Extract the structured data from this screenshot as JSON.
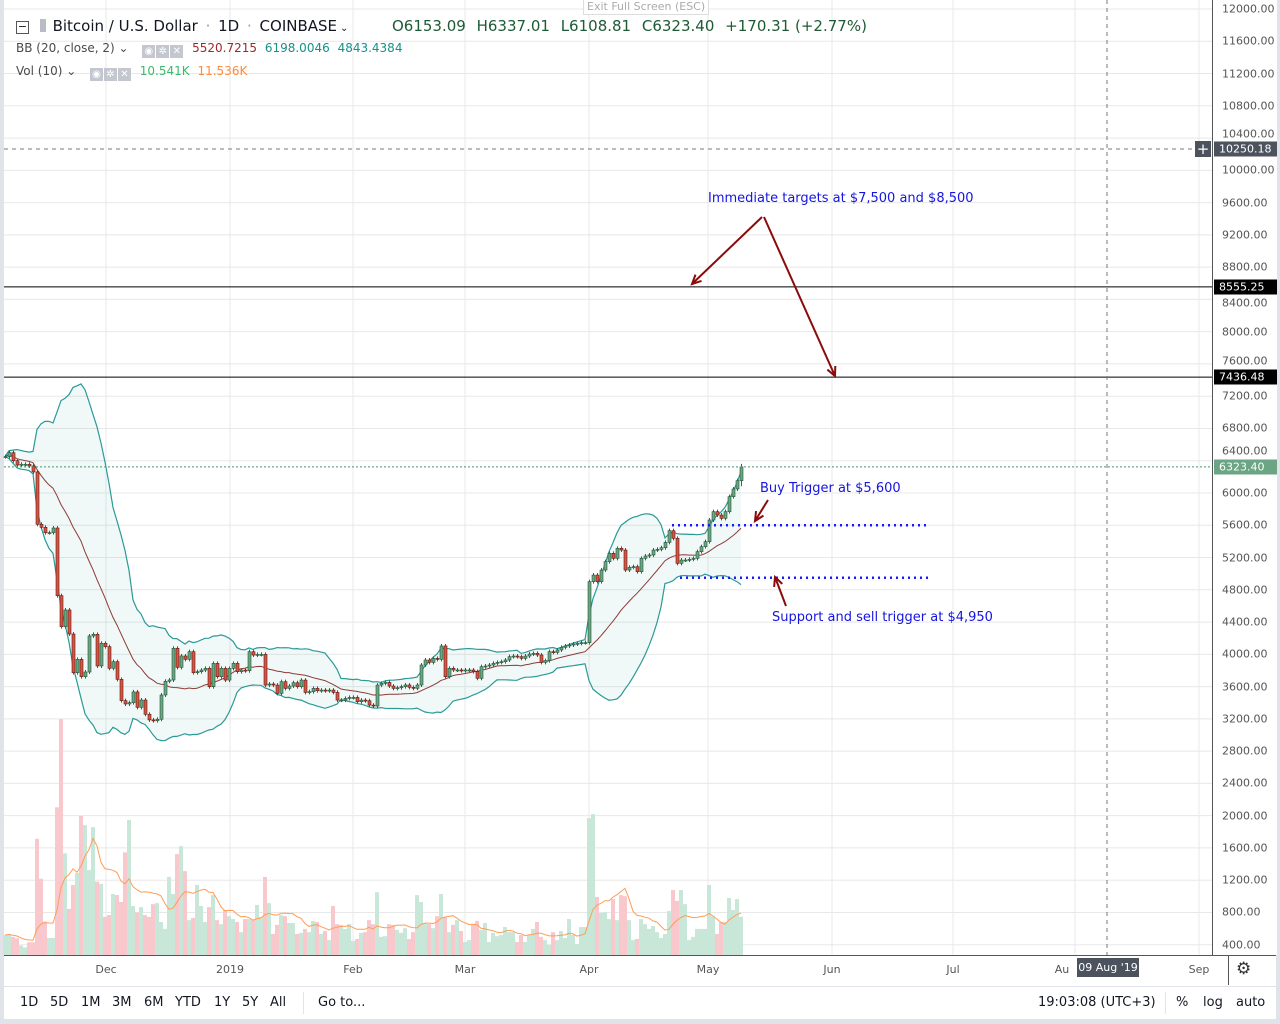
{
  "header": {
    "symbol": "Bitcoin / U.S. Dollar",
    "interval": "1D",
    "exchange": "COINBASE",
    "open": "O6153.09",
    "high": "H6337.01",
    "low": "L6108.81",
    "close": "C6323.40",
    "change": "+170.31 (+2.77%)",
    "tooltip": "Exit Full Screen (ESC)"
  },
  "indicators": [
    {
      "label": "BB (20, close, 2)",
      "values": [
        "5520.7215",
        "6198.0046",
        "4843.4384"
      ],
      "colors": [
        "#9b2a2a",
        "#16908b",
        "#16908b"
      ]
    },
    {
      "label": "Vol (10)",
      "values": [
        "10.541K",
        "11.536K"
      ],
      "colors": [
        "#3cba6b",
        "#ff8a3d"
      ]
    }
  ],
  "price_axis": {
    "ticks": [
      "12000.00",
      "11600.00",
      "11200.00",
      "10800.00",
      "10400.00",
      "10000.00",
      "9600.00",
      "9200.00",
      "8800.00",
      "8400.00",
      "8000.00",
      "7600.00",
      "7200.00",
      "6800.00",
      "6400.00",
      "6000.00",
      "5600.00",
      "5200.00",
      "4800.00",
      "4400.00",
      "4000.00",
      "3600.00",
      "3200.00",
      "2800.00",
      "2400.00",
      "2000.00",
      "1600.00",
      "1200.00",
      "800.00",
      "400.00"
    ],
    "crosshair_label": "10250.18",
    "line_upper_label": "8555.25",
    "line_lower_label": "7436.48",
    "last_price_label": "6323.40"
  },
  "time_axis": {
    "ticks": [
      "Dec",
      "2019",
      "Feb",
      "Mar",
      "Apr",
      "May",
      "Jun",
      "Jul",
      "Au",
      "Sep"
    ],
    "crosshair_label": "09 Aug '19"
  },
  "annotations": {
    "targets": "Immediate targets at $7,500 and $8,500",
    "buy": "Buy Trigger at $5,600",
    "support": "Support and sell trigger at $4,950"
  },
  "toolbar": {
    "ranges": [
      "1D",
      "5D",
      "1M",
      "3M",
      "6M",
      "YTD",
      "1Y",
      "5Y",
      "All"
    ],
    "goto": "Go to...",
    "clock": "19:03:08 (UTC+3)",
    "percent": "%",
    "log": "log",
    "auto": "auto"
  },
  "colors": {
    "up": "#6ba583",
    "down": "#d75442",
    "up_border": "#225437",
    "down_border": "#5b1a13",
    "vol_up": "#c9e7d8",
    "vol_down": "#f8c8cd",
    "bb_band": "#2a9a96",
    "bb_basis": "#8e3b36",
    "vol_ma": "#ff9d56",
    "annotation_text": "#1515e0",
    "annotation_arrow": "#8b0a0a",
    "level_line": "#000000"
  },
  "chart_data": {
    "type": "candlestick",
    "price_scale": "linear",
    "ylim": [
      400,
      12000
    ],
    "bollinger": {
      "period": 20,
      "source": "close",
      "stddev": 2
    },
    "volume_ma_period": 10,
    "levels": [
      8555.25,
      7436.48
    ],
    "buy_trigger": 5600,
    "support_trigger": 4950,
    "last": {
      "open": 6153.09,
      "high": 6337.01,
      "low": 6108.81,
      "close": 6323.4
    },
    "columns": [
      "date",
      "close",
      "volume_k"
    ],
    "rows": [
      [
        "2018-11-07",
        6451,
        5.5
      ],
      [
        "2018-11-08",
        6500,
        5.8
      ],
      [
        "2018-11-09",
        6401,
        5
      ],
      [
        "2018-11-10",
        6347,
        4.6
      ],
      [
        "2018-11-11",
        6356,
        2.6
      ],
      [
        "2018-11-12",
        6356,
        2.1
      ],
      [
        "2018-11-13",
        6335,
        3.5
      ],
      [
        "2018-11-14",
        6261,
        3.5
      ],
      [
        "2018-11-15",
        5612,
        32
      ],
      [
        "2018-11-16",
        5575,
        21
      ],
      [
        "2018-11-17",
        5509,
        9.2
      ],
      [
        "2018-11-18",
        5509,
        4.7
      ],
      [
        "2018-11-19",
        5566,
        4.7
      ],
      [
        "2018-11-20",
        4728,
        40.7
      ],
      [
        "2018-11-21",
        4343,
        65
      ],
      [
        "2018-11-22",
        4550,
        28
      ],
      [
        "2018-11-23",
        4252,
        12.7
      ],
      [
        "2018-11-24",
        3773,
        19.3
      ],
      [
        "2018-11-25",
        3938,
        22.6
      ],
      [
        "2018-11-26",
        3724,
        38.3
      ],
      [
        "2018-11-27",
        3781,
        35.8
      ],
      [
        "2018-11-28",
        4228,
        23.4
      ],
      [
        "2018-11-29",
        4248,
        35.2
      ],
      [
        "2018-11-30",
        3856,
        20.2
      ],
      [
        "2018-12-01",
        4137,
        19.6
      ],
      [
        "2018-12-02",
        4095,
        10.5
      ],
      [
        "2018-12-03",
        3827,
        11
      ],
      [
        "2018-12-04",
        3909,
        16.8
      ],
      [
        "2018-12-05",
        3690,
        16.5
      ],
      [
        "2018-12-06",
        3426,
        14.6
      ],
      [
        "2018-12-07",
        3385,
        28.3
      ],
      [
        "2018-12-08",
        3401,
        37.2
      ],
      [
        "2018-12-09",
        3534,
        13.5
      ],
      [
        "2018-12-10",
        3343,
        11.7
      ],
      [
        "2018-12-11",
        3434,
        13.2
      ],
      [
        "2018-12-12",
        3257,
        11
      ],
      [
        "2018-12-13",
        3187,
        10.5
      ],
      [
        "2018-12-14",
        3178,
        14
      ],
      [
        "2018-12-15",
        3195,
        14.3
      ],
      [
        "2018-12-16",
        3496,
        9.1
      ],
      [
        "2018-12-17",
        3666,
        7.2
      ],
      [
        "2018-12-18",
        3682,
        21.5
      ],
      [
        "2018-12-19",
        4075,
        16.8
      ],
      [
        "2018-12-20",
        3839,
        27.8
      ],
      [
        "2018-12-21",
        3980,
        30
      ],
      [
        "2018-12-22",
        3938,
        23.1
      ],
      [
        "2018-12-23",
        4033,
        9.6
      ],
      [
        "2018-12-24",
        3773,
        10.2
      ],
      [
        "2018-12-25",
        3785,
        19.3
      ],
      [
        "2018-12-26",
        3805,
        13.5
      ],
      [
        "2018-12-27",
        3826,
        9.1
      ],
      [
        "2018-12-28",
        3599,
        13.2
      ],
      [
        "2018-12-29",
        3888,
        16.5
      ],
      [
        "2018-12-30",
        3723,
        9.6
      ],
      [
        "2018-12-31",
        3826,
        8.5
      ],
      [
        "2019-01-01",
        3681,
        12.4
      ],
      [
        "2019-01-02",
        3826,
        10.7
      ],
      [
        "2019-01-03",
        3888,
        9.9
      ],
      [
        "2019-01-04",
        3785,
        9.1
      ],
      [
        "2019-01-05",
        3805,
        6.3
      ],
      [
        "2019-01-06",
        3797,
        9.9
      ],
      [
        "2019-01-07",
        4032,
        9.9
      ],
      [
        "2019-01-08",
        3991,
        9.6
      ],
      [
        "2019-01-09",
        3999,
        13.8
      ],
      [
        "2019-01-10",
        3999,
        10.5
      ],
      [
        "2019-01-11",
        3619,
        21.5
      ],
      [
        "2019-01-12",
        3632,
        14.3
      ],
      [
        "2019-01-13",
        3619,
        5.8
      ],
      [
        "2019-01-14",
        3516,
        8.3
      ],
      [
        "2019-01-15",
        3661,
        11
      ],
      [
        "2019-01-16",
        3578,
        10.7
      ],
      [
        "2019-01-17",
        3607,
        8.8
      ],
      [
        "2019-01-18",
        3648,
        8.8
      ],
      [
        "2019-01-19",
        3599,
        5.8
      ],
      [
        "2019-01-20",
        3681,
        6.1
      ],
      [
        "2019-01-21",
        3528,
        7.2
      ],
      [
        "2019-01-22",
        3537,
        6.3
      ],
      [
        "2019-01-23",
        3578,
        9.4
      ],
      [
        "2019-01-24",
        3549,
        9.1
      ],
      [
        "2019-01-25",
        3557,
        5.8
      ],
      [
        "2019-01-26",
        3549,
        6.6
      ],
      [
        "2019-01-27",
        3557,
        4.1
      ],
      [
        "2019-01-28",
        3528,
        13.5
      ],
      [
        "2019-01-29",
        3433,
        8.5
      ],
      [
        "2019-01-30",
        3433,
        8.3
      ],
      [
        "2019-01-31",
        3454,
        7.2
      ],
      [
        "2019-02-01",
        3466,
        8.5
      ],
      [
        "2019-02-02",
        3466,
        3.9
      ],
      [
        "2019-02-03",
        3413,
        4.4
      ],
      [
        "2019-02-04",
        3433,
        6.1
      ],
      [
        "2019-02-05",
        3425,
        6.3
      ],
      [
        "2019-02-06",
        3371,
        9.6
      ],
      [
        "2019-02-07",
        3359,
        8.5
      ],
      [
        "2019-02-08",
        3619,
        17.3
      ],
      [
        "2019-02-09",
        3640,
        5
      ],
      [
        "2019-02-10",
        3652,
        5.2
      ],
      [
        "2019-02-11",
        3607,
        8.5
      ],
      [
        "2019-02-12",
        3578,
        8.3
      ],
      [
        "2019-02-13",
        3586,
        6.9
      ],
      [
        "2019-02-14",
        3600,
        6.1
      ],
      [
        "2019-02-15",
        3620,
        7.4
      ],
      [
        "2019-02-16",
        3591,
        4.4
      ],
      [
        "2019-02-17",
        3579,
        6.3
      ],
      [
        "2019-02-18",
        3620,
        16.5
      ],
      [
        "2019-02-19",
        3868,
        14.6
      ],
      [
        "2019-02-20",
        3930,
        8.8
      ],
      [
        "2019-02-21",
        3901,
        8.5
      ],
      [
        "2019-02-22",
        3950,
        7.4
      ],
      [
        "2019-02-23",
        3938,
        10.7
      ],
      [
        "2019-02-24",
        4104,
        16.8
      ],
      [
        "2019-02-25",
        3723,
        10.5
      ],
      [
        "2019-02-26",
        3827,
        6.3
      ],
      [
        "2019-02-27",
        3806,
        8.3
      ],
      [
        "2019-02-28",
        3806,
        9.6
      ],
      [
        "2019-03-01",
        3798,
        6.6
      ],
      [
        "2019-03-02",
        3806,
        3.6
      ],
      [
        "2019-03-03",
        3806,
        4.1
      ],
      [
        "2019-03-04",
        3785,
        8.3
      ],
      [
        "2019-03-05",
        3703,
        9.4
      ],
      [
        "2019-03-06",
        3847,
        6.9
      ],
      [
        "2019-03-07",
        3855,
        8.8
      ],
      [
        "2019-03-08",
        3868,
        3.6
      ],
      [
        "2019-03-09",
        3889,
        6.1
      ],
      [
        "2019-03-10",
        3901,
        5.2
      ],
      [
        "2019-03-11",
        3909,
        5.5
      ],
      [
        "2019-03-12",
        3930,
        7.7
      ],
      [
        "2019-03-13",
        3971,
        6.3
      ],
      [
        "2019-03-14",
        3979,
        6.3
      ],
      [
        "2019-03-15",
        3971,
        3.6
      ],
      [
        "2019-03-16",
        3950,
        5.5
      ],
      [
        "2019-03-17",
        3979,
        3.6
      ],
      [
        "2019-03-18",
        4004,
        5.5
      ],
      [
        "2019-03-19",
        4012,
        7.2
      ],
      [
        "2019-03-20",
        3992,
        9.1
      ],
      [
        "2019-03-21",
        3901,
        5
      ],
      [
        "2019-03-22",
        3922,
        4.1
      ],
      [
        "2019-03-23",
        4033,
        2.8
      ],
      [
        "2019-03-24",
        4025,
        6.3
      ],
      [
        "2019-03-25",
        4054,
        4.1
      ],
      [
        "2019-03-26",
        4087,
        6.6
      ],
      [
        "2019-03-27",
        4104,
        4.7
      ],
      [
        "2019-03-28",
        4116,
        9.9
      ],
      [
        "2019-03-29",
        4128,
        5.5
      ],
      [
        "2019-03-30",
        4136,
        3
      ],
      [
        "2019-03-31",
        4145,
        7.7
      ],
      [
        "2019-04-01",
        4145,
        7.7
      ],
      [
        "2019-04-02",
        4901,
        37.7
      ],
      [
        "2019-04-03",
        4983,
        38.8
      ],
      [
        "2019-04-04",
        4901,
        16
      ],
      [
        "2019-04-05",
        5045,
        11.6
      ],
      [
        "2019-04-06",
        5149,
        11.8
      ],
      [
        "2019-04-07",
        5252,
        9.9
      ],
      [
        "2019-04-08",
        5190,
        15.4
      ],
      [
        "2019-04-09",
        5314,
        9.6
      ],
      [
        "2019-04-10",
        5293,
        16.5
      ],
      [
        "2019-04-11",
        5045,
        16.2
      ],
      [
        "2019-04-12",
        5079,
        9.6
      ],
      [
        "2019-04-13",
        5087,
        4.1
      ],
      [
        "2019-04-14",
        5025,
        4.4
      ],
      [
        "2019-04-15",
        5190,
        9.9
      ],
      [
        "2019-04-16",
        5219,
        8.5
      ],
      [
        "2019-04-17",
        5232,
        7.2
      ],
      [
        "2019-04-18",
        5293,
        8
      ],
      [
        "2019-04-19",
        5302,
        6.3
      ],
      [
        "2019-04-20",
        5322,
        4.7
      ],
      [
        "2019-04-21",
        5388,
        5.8
      ],
      [
        "2019-04-22",
        5533,
        12.1
      ],
      [
        "2019-04-23",
        5438,
        17.9
      ],
      [
        "2019-04-24",
        5128,
        14.9
      ],
      [
        "2019-04-25",
        5169,
        17.9
      ],
      [
        "2019-04-26",
        5169,
        14
      ],
      [
        "2019-04-27",
        5178,
        4.1
      ],
      [
        "2019-04-28",
        5190,
        5
      ],
      [
        "2019-04-29",
        5273,
        7.2
      ],
      [
        "2019-04-30",
        5335,
        7.2
      ],
      [
        "2019-05-01",
        5397,
        7.2
      ],
      [
        "2019-05-02",
        5665,
        19.3
      ],
      [
        "2019-05-03",
        5769,
        10.7
      ],
      [
        "2019-05-04",
        5727,
        5.8
      ],
      [
        "2019-05-05",
        5686,
        9.1
      ],
      [
        "2019-05-06",
        5769,
        9.1
      ],
      [
        "2019-05-07",
        5955,
        15.7
      ],
      [
        "2019-05-08",
        6050,
        12.4
      ],
      [
        "2019-05-09",
        6153.09,
        15.4
      ],
      [
        "2019-05-10",
        6323.4,
        10.541
      ]
    ]
  }
}
